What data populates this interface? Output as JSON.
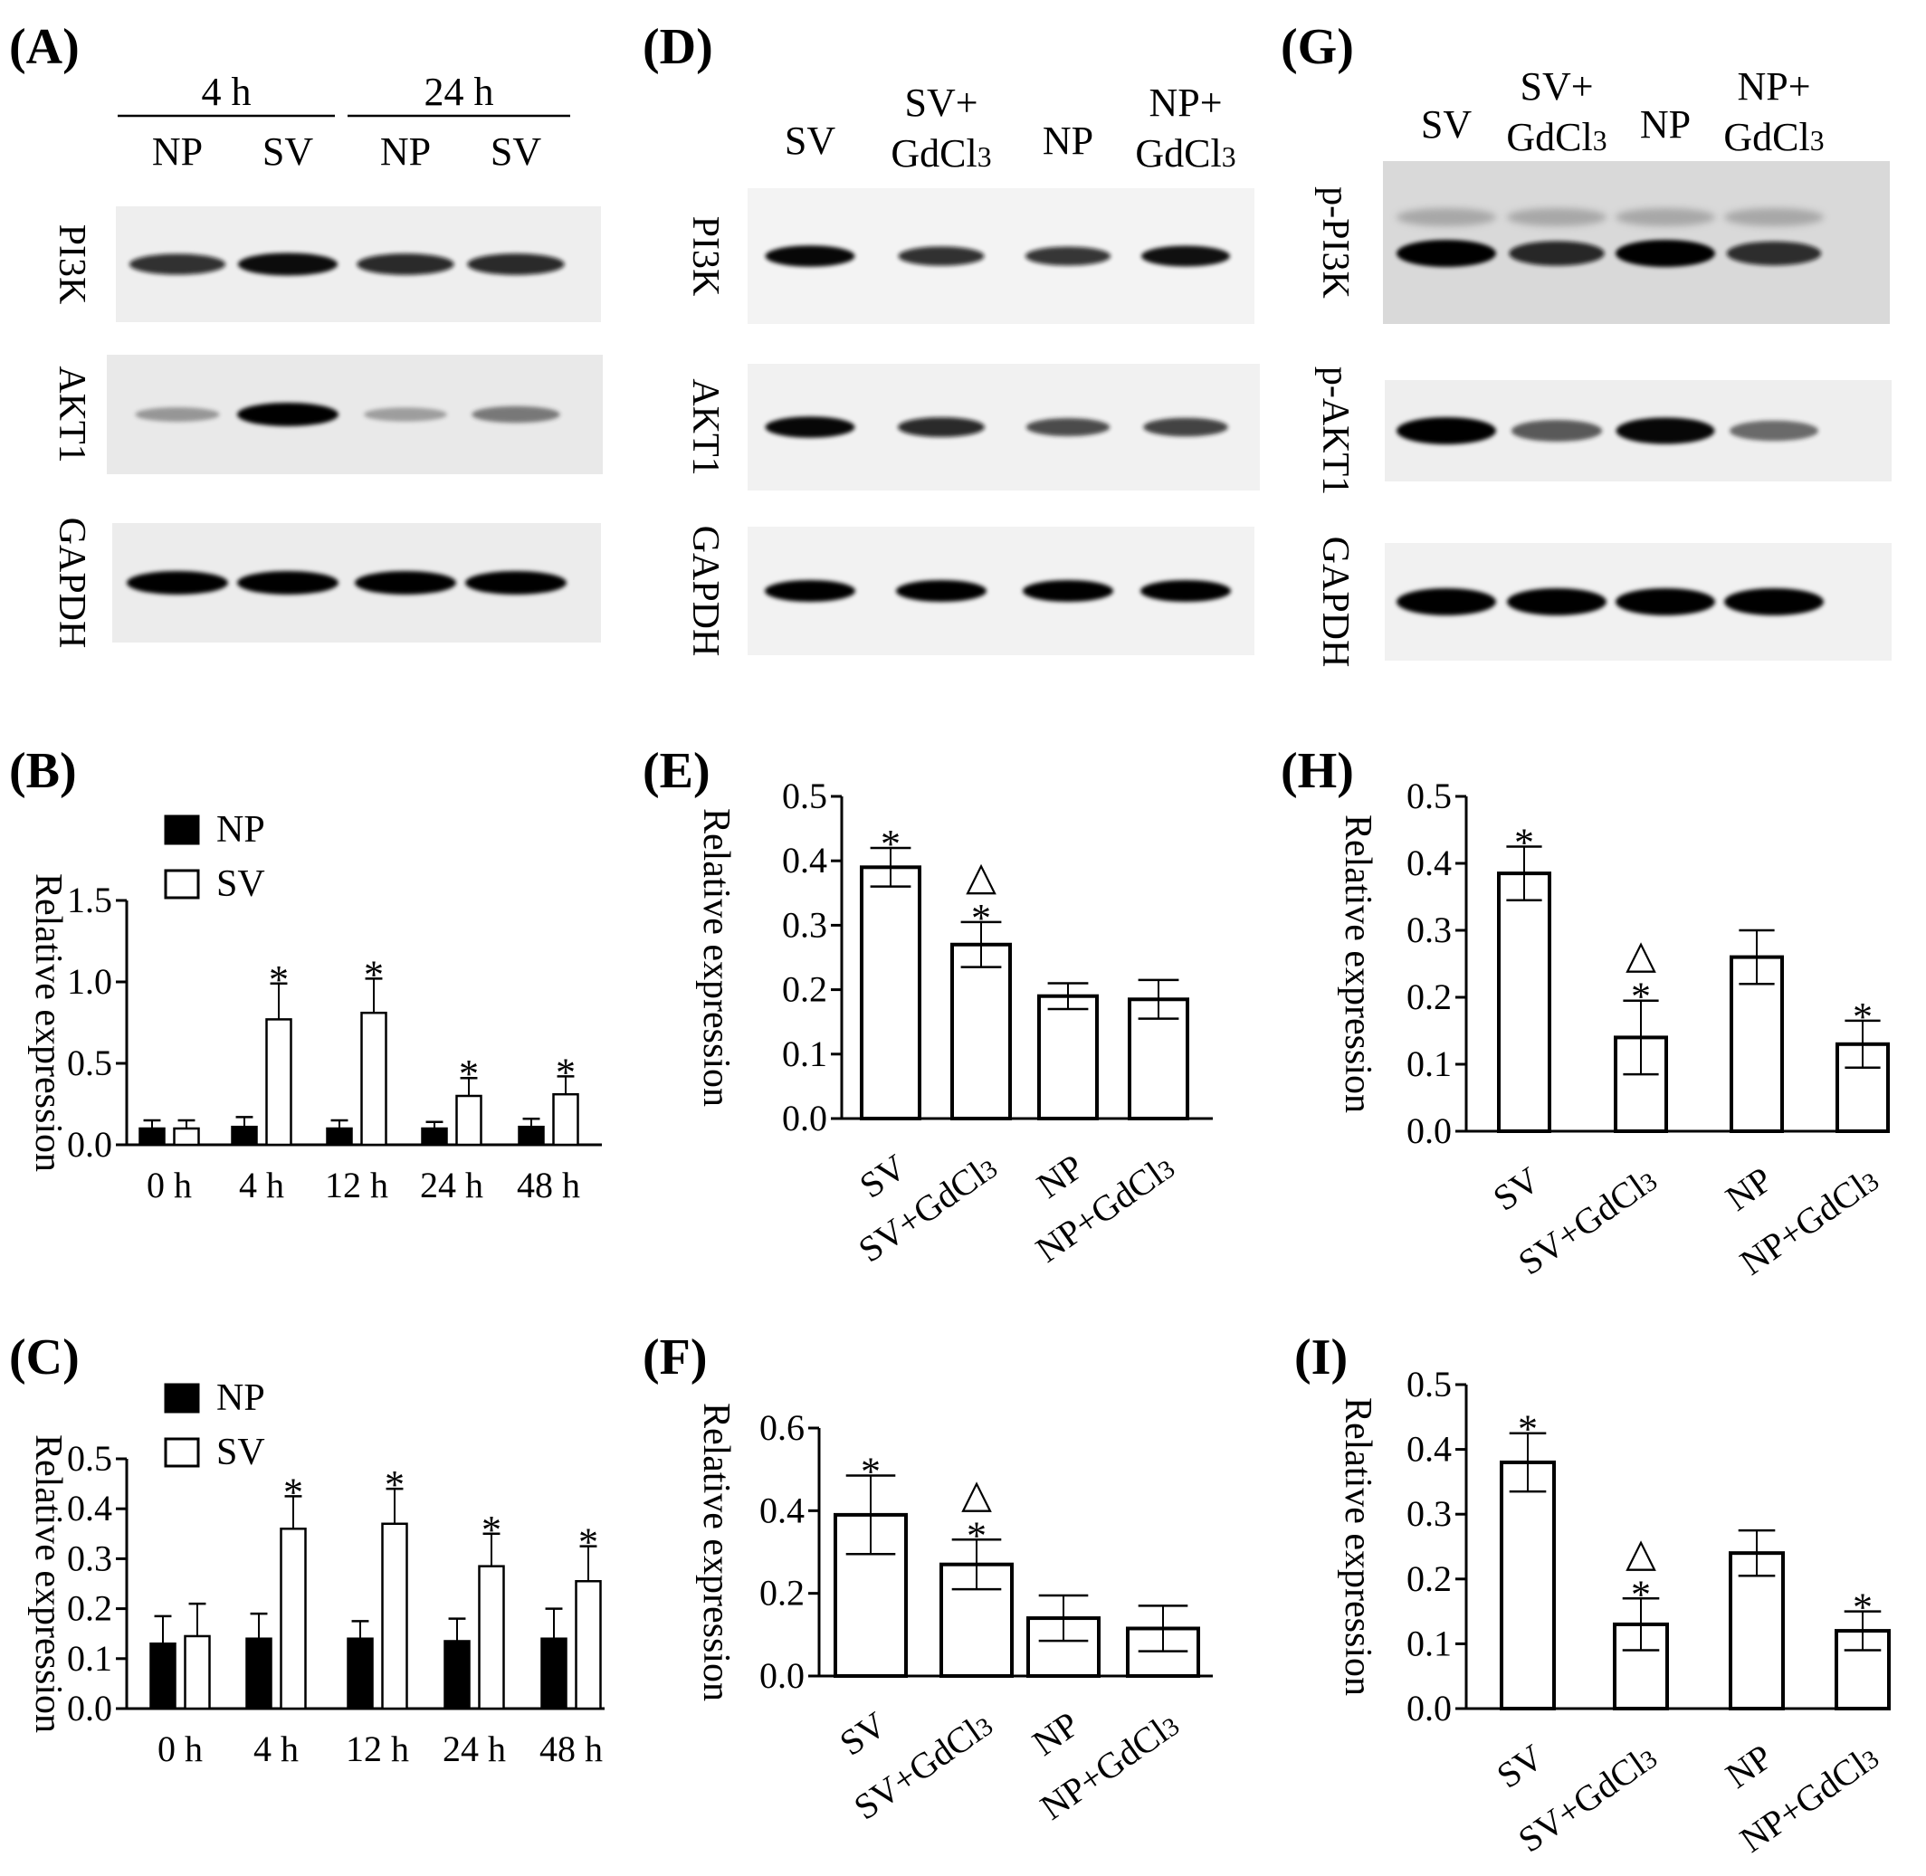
{
  "panels": {
    "A": {
      "label": "(A)"
    },
    "B": {
      "label": "(B)"
    },
    "C": {
      "label": "(C)"
    },
    "D": {
      "label": "(D)"
    },
    "E": {
      "label": "(E)"
    },
    "F": {
      "label": "(F)"
    },
    "G": {
      "label": "(G)"
    },
    "H": {
      "label": "(H)"
    },
    "I": {
      "label": "(I)"
    }
  },
  "blots": {
    "A": {
      "groups": [
        "4 h",
        "24 h"
      ],
      "lanes": [
        "NP",
        "SV",
        "NP",
        "SV"
      ],
      "proteins": [
        "PI3K",
        "AKT1",
        "GAPDH"
      ],
      "band_intensity": [
        [
          0.75,
          0.92,
          0.8,
          0.8
        ],
        [
          0.15,
          1.0,
          0.1,
          0.35
        ],
        [
          1.0,
          1.0,
          1.0,
          1.0
        ]
      ]
    },
    "D": {
      "lanes": [
        [
          "SV"
        ],
        [
          "SV+",
          "GdCl3"
        ],
        [
          "NP"
        ],
        [
          "NP+",
          "GdCl3"
        ]
      ],
      "proteins": [
        "PI3K",
        "AKT1",
        "GAPDH"
      ],
      "band_intensity": [
        [
          0.95,
          0.75,
          0.72,
          0.9
        ],
        [
          0.95,
          0.8,
          0.62,
          0.68
        ],
        [
          1.0,
          1.0,
          1.0,
          1.0
        ]
      ]
    },
    "G": {
      "lanes": [
        [
          "SV"
        ],
        [
          "SV+",
          "GdCl3"
        ],
        [
          "NP"
        ],
        [
          "NP+",
          "GdCl3"
        ]
      ],
      "proteins": [
        "p-PI3K",
        "p-AKT1",
        "GAPDH"
      ],
      "band_intensity": [
        [
          1.0,
          0.8,
          1.0,
          0.75
        ],
        [
          1.0,
          0.55,
          0.95,
          0.45
        ],
        [
          1.0,
          1.0,
          1.0,
          1.0
        ]
      ]
    }
  },
  "chart_data": [
    {
      "panel": "B",
      "type": "bar",
      "ylabel": "Relative expression",
      "categories": [
        "0 h",
        "4 h",
        "12 h",
        "24 h",
        "48 h"
      ],
      "ylim": [
        0,
        1.5
      ],
      "yticks": [
        "0.0",
        "0.5",
        "1.0",
        "1.5"
      ],
      "legend": [
        "NP",
        "SV"
      ],
      "series": [
        {
          "name": "NP",
          "fill": "#000000",
          "values": [
            0.1,
            0.11,
            0.1,
            0.1,
            0.11
          ],
          "errors": [
            0.05,
            0.06,
            0.05,
            0.04,
            0.05
          ],
          "marks": [
            "",
            "",
            "",
            "",
            ""
          ]
        },
        {
          "name": "SV",
          "fill": "#ffffff",
          "values": [
            0.1,
            0.77,
            0.81,
            0.3,
            0.31
          ],
          "errors": [
            0.05,
            0.22,
            0.21,
            0.11,
            0.11
          ],
          "marks": [
            "",
            "*",
            "*",
            "*",
            "*"
          ]
        }
      ]
    },
    {
      "panel": "C",
      "type": "bar",
      "ylabel": "Relative expression",
      "categories": [
        "0 h",
        "4 h",
        "12 h",
        "24 h",
        "48 h"
      ],
      "ylim": [
        0,
        0.5
      ],
      "yticks": [
        "0.0",
        "0.1",
        "0.2",
        "0.3",
        "0.4",
        "0.5"
      ],
      "legend": [
        "NP",
        "SV"
      ],
      "series": [
        {
          "name": "NP",
          "fill": "#000000",
          "values": [
            0.13,
            0.14,
            0.14,
            0.135,
            0.14
          ],
          "errors": [
            0.055,
            0.05,
            0.035,
            0.045,
            0.06
          ],
          "marks": [
            "",
            "",
            "",
            "",
            ""
          ]
        },
        {
          "name": "SV",
          "fill": "#ffffff",
          "values": [
            0.145,
            0.36,
            0.37,
            0.285,
            0.255
          ],
          "errors": [
            0.065,
            0.065,
            0.07,
            0.065,
            0.07
          ],
          "marks": [
            "",
            "*",
            "*",
            "*",
            "*"
          ]
        }
      ]
    },
    {
      "panel": "E",
      "type": "bar",
      "ylabel": "Relative expression",
      "categories": [
        "SV",
        "SV+GdCl3",
        "NP",
        "NP+GdCl3"
      ],
      "ylim": [
        0,
        0.5
      ],
      "yticks": [
        "0.0",
        "0.1",
        "0.2",
        "0.3",
        "0.4",
        "0.5"
      ],
      "values": [
        0.39,
        0.27,
        0.19,
        0.185
      ],
      "errors": [
        0.03,
        0.035,
        0.02,
        0.03
      ],
      "marks": [
        [
          "*"
        ],
        [
          "△",
          "*"
        ],
        [],
        []
      ]
    },
    {
      "panel": "F",
      "type": "bar",
      "ylabel": "Relative expression",
      "categories": [
        "SV",
        "SV+GdCl3",
        "NP",
        "NP+GdCl3"
      ],
      "ylim": [
        0,
        0.6
      ],
      "yticks": [
        "0.0",
        "0.2",
        "0.4",
        "0.6"
      ],
      "values": [
        0.39,
        0.27,
        0.14,
        0.115
      ],
      "errors": [
        0.095,
        0.06,
        0.055,
        0.055
      ],
      "marks": [
        [
          "*"
        ],
        [
          "△",
          "*"
        ],
        [],
        []
      ]
    },
    {
      "panel": "H",
      "type": "bar",
      "ylabel": "Relative expression",
      "categories": [
        "SV",
        "SV+GdCl3",
        "NP",
        "NP+GdCl3"
      ],
      "ylim": [
        0,
        0.5
      ],
      "yticks": [
        "0.0",
        "0.1",
        "0.2",
        "0.3",
        "0.4",
        "0.5"
      ],
      "values": [
        0.385,
        0.14,
        0.26,
        0.13
      ],
      "errors": [
        0.04,
        0.055,
        0.04,
        0.035
      ],
      "marks": [
        [
          "*"
        ],
        [
          "△",
          "*"
        ],
        [],
        [
          "*"
        ]
      ]
    },
    {
      "panel": "I",
      "type": "bar",
      "ylabel": "Relative expression",
      "categories": [
        "SV",
        "SV+GdCl3",
        "NP",
        "NP+GdCl3"
      ],
      "ylim": [
        0,
        0.5
      ],
      "yticks": [
        "0.0",
        "0.1",
        "0.2",
        "0.3",
        "0.4",
        "0.5"
      ],
      "values": [
        0.38,
        0.13,
        0.24,
        0.12
      ],
      "errors": [
        0.045,
        0.04,
        0.035,
        0.03
      ],
      "marks": [
        [
          "*"
        ],
        [
          "△",
          "*"
        ],
        [],
        [
          "*"
        ]
      ]
    }
  ]
}
